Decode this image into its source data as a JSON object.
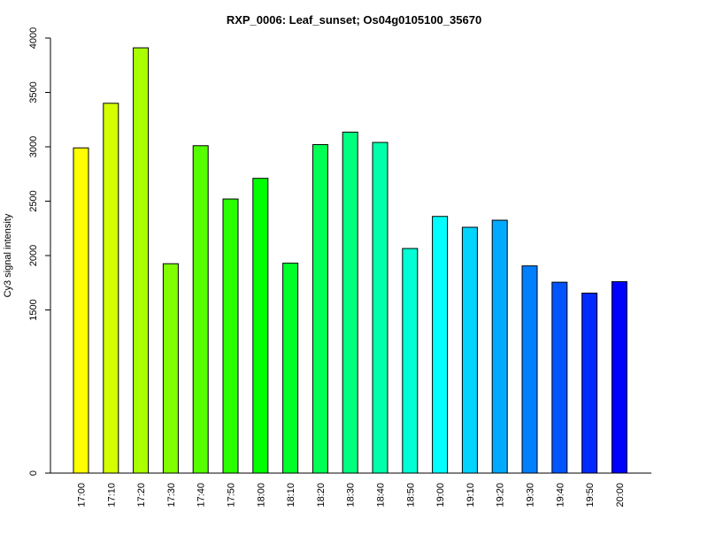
{
  "chart_data": {
    "type": "bar",
    "title": "RXP_0006: Leaf_sunset; Os04g0105100_35670",
    "xlabel": "",
    "ylabel": "Cy3 signal intensity",
    "categories": [
      "17:00",
      "17:10",
      "17:20",
      "17:30",
      "17:40",
      "17:50",
      "18:00",
      "18:10",
      "18:20",
      "18:30",
      "18:40",
      "18:50",
      "19:00",
      "19:10",
      "19:20",
      "19:30",
      "19:40",
      "19:50",
      "20:00"
    ],
    "values": [
      2990,
      3400,
      3910,
      1925,
      3010,
      2520,
      2710,
      1930,
      3020,
      3135,
      3040,
      2065,
      2360,
      2260,
      2325,
      1905,
      1755,
      1655,
      1760
    ],
    "colors": [
      "#FFFF00",
      "#D4FF00",
      "#AAFF00",
      "#7FFF00",
      "#55FF00",
      "#2AFF00",
      "#00FF00",
      "#00FF2A",
      "#00FF55",
      "#00FF7F",
      "#00FFAA",
      "#00FFD4",
      "#00FFFF",
      "#00D4FF",
      "#00AAFF",
      "#007FFF",
      "#0055FF",
      "#002AFF",
      "#0000FF"
    ],
    "yticks": [
      0,
      1500,
      2000,
      2500,
      3000,
      3500,
      4000
    ],
    "ylim": [
      0,
      4000
    ],
    "grid": false,
    "legend": false
  }
}
